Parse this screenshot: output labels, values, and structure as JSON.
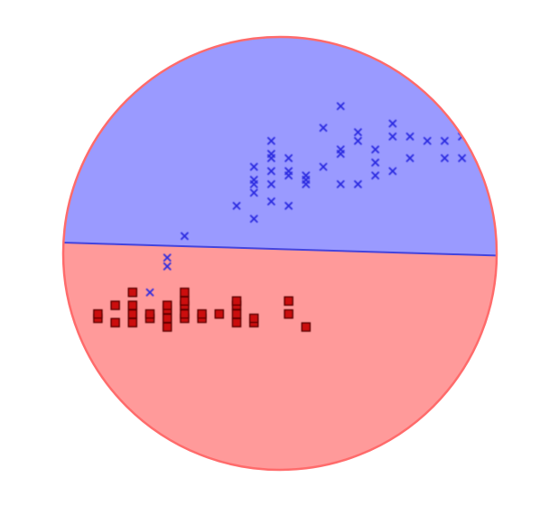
{
  "chart_data": {
    "type": "scatter",
    "title": "",
    "xlabel": "",
    "ylabel": "",
    "grid": false,
    "legend": "none",
    "xlim": [
      0,
      100
    ],
    "ylim": [
      0,
      100
    ],
    "decision_boundary": {
      "points": [
        [
          0,
          52.5
        ],
        [
          10,
          52.2
        ],
        [
          30,
          51.6
        ],
        [
          50,
          51.0
        ],
        [
          70,
          50.4
        ],
        [
          90,
          49.8
        ],
        [
          100,
          49.5
        ]
      ],
      "color": "#4444dd"
    },
    "regions": {
      "above_color": "#9a9aff",
      "below_color": "#ff9a9a",
      "rim_color": "#ff6b6b"
    },
    "series": [
      {
        "marker": "x",
        "color": "#2a2ae0",
        "points": [
          [
            20,
            41
          ],
          [
            24,
            49
          ],
          [
            24,
            47
          ],
          [
            28,
            54
          ],
          [
            40,
            61
          ],
          [
            44,
            58
          ],
          [
            44,
            64
          ],
          [
            44,
            66
          ],
          [
            44,
            67
          ],
          [
            44,
            70
          ],
          [
            48,
            62
          ],
          [
            48,
            66
          ],
          [
            48,
            69
          ],
          [
            48,
            72
          ],
          [
            48,
            73
          ],
          [
            48,
            76
          ],
          [
            52,
            61
          ],
          [
            52,
            68
          ],
          [
            52,
            69
          ],
          [
            52,
            72
          ],
          [
            56,
            66
          ],
          [
            56,
            67
          ],
          [
            56,
            68
          ],
          [
            60,
            70
          ],
          [
            60,
            79
          ],
          [
            64,
            66
          ],
          [
            64,
            73
          ],
          [
            64,
            74
          ],
          [
            64,
            84
          ],
          [
            68,
            66
          ],
          [
            68,
            76
          ],
          [
            68,
            78
          ],
          [
            72,
            68
          ],
          [
            72,
            71
          ],
          [
            72,
            74
          ],
          [
            76,
            69
          ],
          [
            76,
            77
          ],
          [
            76,
            80
          ],
          [
            80,
            72
          ],
          [
            80,
            77
          ],
          [
            84,
            76
          ],
          [
            88,
            72
          ],
          [
            88,
            76
          ],
          [
            92,
            72
          ],
          [
            92,
            77
          ],
          [
            92,
            82
          ]
        ]
      },
      {
        "marker": "square",
        "color": "#cc1111",
        "points": [
          [
            8,
            35
          ],
          [
            8,
            36
          ],
          [
            12,
            34
          ],
          [
            12,
            38
          ],
          [
            16,
            34
          ],
          [
            16,
            36
          ],
          [
            16,
            38
          ],
          [
            16,
            41
          ],
          [
            20,
            35
          ],
          [
            20,
            36
          ],
          [
            24,
            33
          ],
          [
            24,
            35
          ],
          [
            24,
            37
          ],
          [
            24,
            38
          ],
          [
            28,
            35
          ],
          [
            28,
            36
          ],
          [
            28,
            38
          ],
          [
            28,
            39
          ],
          [
            28,
            41
          ],
          [
            32,
            35
          ],
          [
            32,
            36
          ],
          [
            36,
            36
          ],
          [
            40,
            34
          ],
          [
            40,
            36
          ],
          [
            40,
            38
          ],
          [
            40,
            39
          ],
          [
            44,
            34
          ],
          [
            44,
            35
          ],
          [
            52,
            36
          ],
          [
            52,
            39
          ],
          [
            56,
            33
          ]
        ]
      }
    ]
  }
}
